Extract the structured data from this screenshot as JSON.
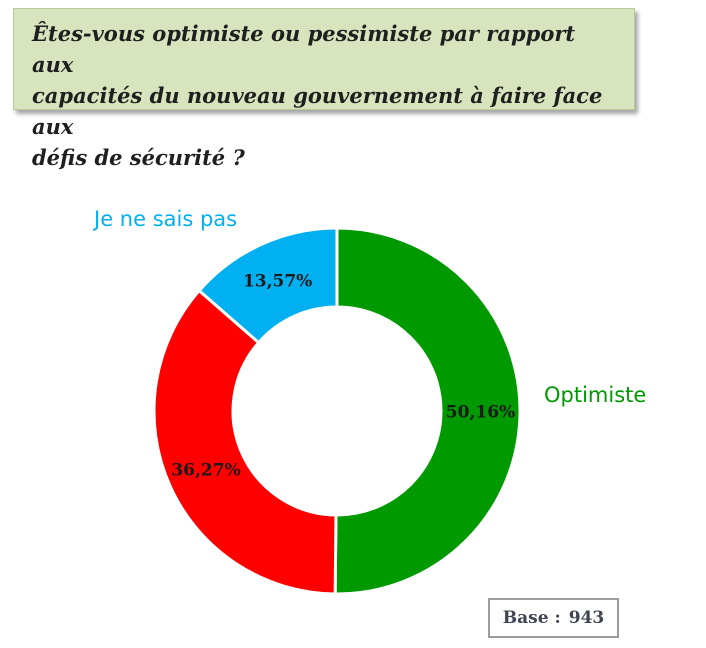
{
  "question": {
    "line1": "Êtes-vous optimiste ou pessimiste par rapport aux",
    "line2": "capacités du nouveau gouvernement à faire face aux",
    "line3": "défis de sécurité ?"
  },
  "chart_data": {
    "type": "pie",
    "donut": true,
    "title": "",
    "slices": [
      {
        "category": "Optimiste",
        "value": 50.16,
        "value_label": "50,16%",
        "color": "#009900",
        "category_label_color": "#009900"
      },
      {
        "category": "",
        "value": 36.27,
        "value_label": "36,27%",
        "color": "#ff0000",
        "category_label_color": "#ff0000"
      },
      {
        "category": "Je ne sais pas",
        "value": 13.57,
        "value_label": "13,57%",
        "color": "#00b0f0",
        "category_label_color": "#00b0f0"
      }
    ],
    "legend": "none"
  },
  "base": {
    "label": "Base :",
    "value": "943"
  }
}
